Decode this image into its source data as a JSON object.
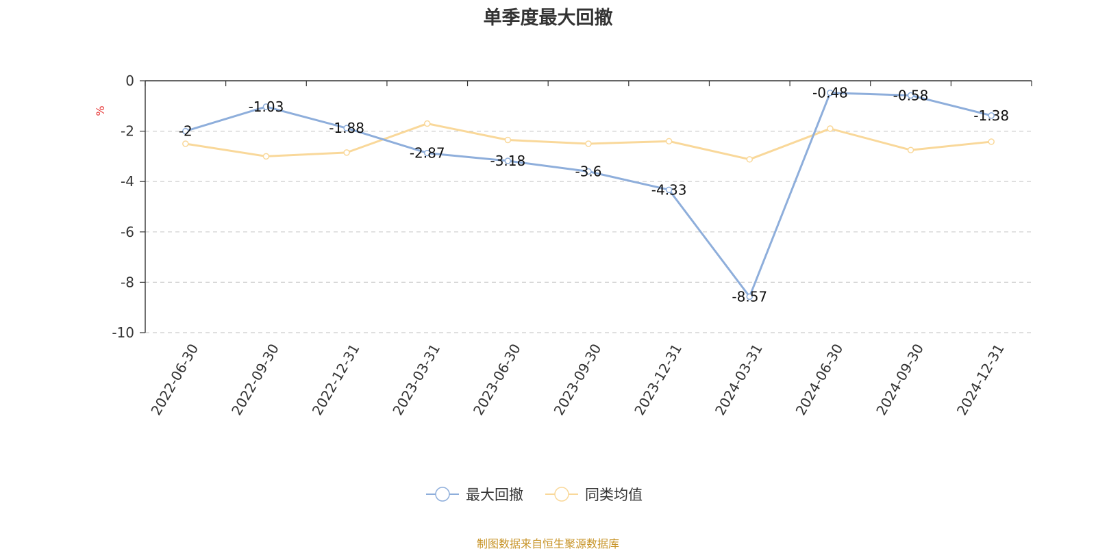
{
  "chart_data": {
    "type": "line",
    "title": "单季度最大回撤",
    "ylabel": "%",
    "xlabel": "",
    "ylim": [
      -10,
      0
    ],
    "yticks": [
      0,
      -2,
      -4,
      -6,
      -8,
      -10
    ],
    "grid": true,
    "legend_position": "bottom-center",
    "categories": [
      "2022-06-30",
      "2022-09-30",
      "2022-12-31",
      "2023-03-31",
      "2023-06-30",
      "2023-09-30",
      "2023-12-31",
      "2024-03-31",
      "2024-06-30",
      "2024-09-30",
      "2024-12-31"
    ],
    "series": [
      {
        "name": "最大回撤",
        "color": "#8eaedb",
        "values": [
          -2,
          -1.03,
          -1.88,
          -2.87,
          -3.18,
          -3.6,
          -4.33,
          -8.57,
          -0.48,
          -0.58,
          -1.38
        ],
        "data_labels": true
      },
      {
        "name": "同类均值",
        "color": "#f9d89a",
        "values": [
          -2.5,
          -3.0,
          -2.85,
          -1.7,
          -2.35,
          -2.5,
          -2.4,
          -3.12,
          -1.9,
          -2.75,
          -2.42
        ],
        "data_labels": false
      }
    ]
  },
  "footer": {
    "source": "制图数据来自恒生聚源数据库"
  }
}
